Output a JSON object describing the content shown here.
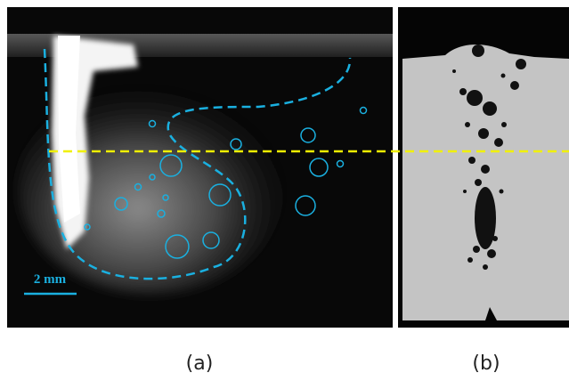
{
  "panels": [
    {
      "label": "(a)",
      "scale_bar": "2 mm"
    },
    {
      "label": "(b)"
    }
  ]
}
